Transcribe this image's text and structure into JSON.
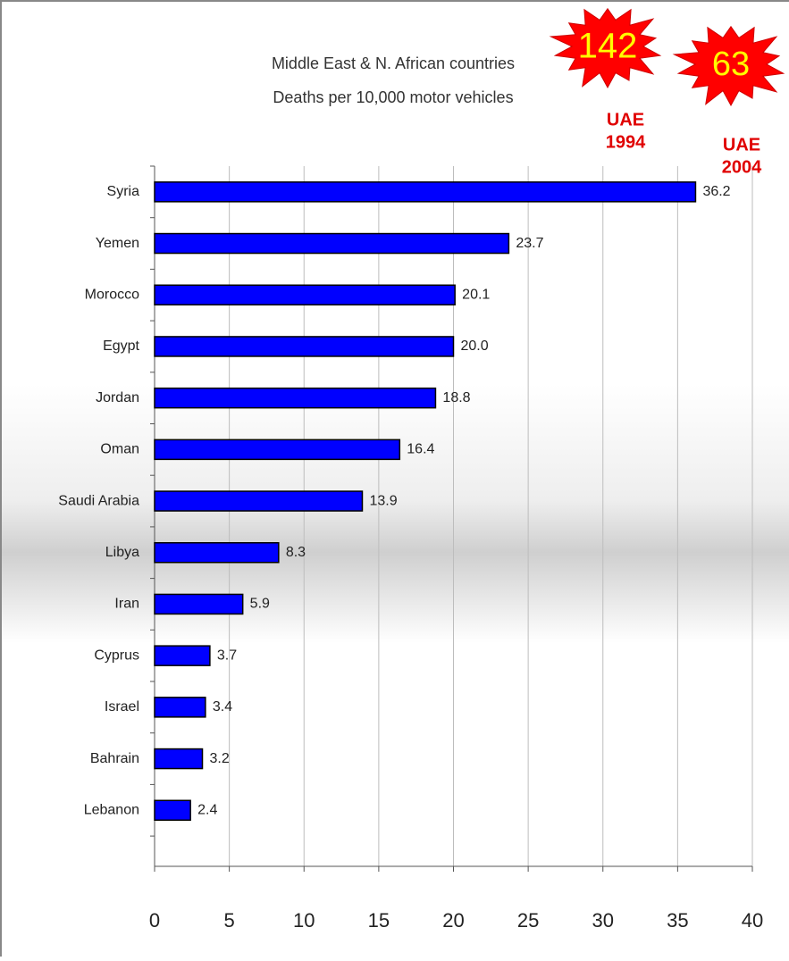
{
  "chart_data": {
    "type": "bar",
    "orientation": "horizontal",
    "title": "Middle East & N. African countries",
    "subtitle": "Deaths per 10,000 motor vehicles",
    "categories": [
      "Syria",
      "Yemen",
      "Morocco",
      "Egypt",
      "Jordan",
      "Oman",
      "Saudi Arabia",
      "Libya",
      "Iran",
      "Cyprus",
      "Israel",
      "Bahrain",
      "Lebanon"
    ],
    "values": [
      36.2,
      23.7,
      20.1,
      20.0,
      18.8,
      16.4,
      13.9,
      8.3,
      5.9,
      3.7,
      3.4,
      3.2,
      2.4
    ],
    "value_labels": [
      "36.2",
      "23.7",
      "20.1",
      "20.0",
      "18.8",
      "16.4",
      "13.9",
      "8.3",
      "5.9",
      "3.7",
      "3.4",
      "3.2",
      "2.4"
    ],
    "color": "#0000ff",
    "xlim": [
      0,
      40
    ],
    "xticks": [
      0,
      5,
      10,
      15,
      20,
      25,
      30,
      35,
      40
    ],
    "grid": true,
    "annotations": [
      {
        "burst": "142",
        "caption": [
          "UAE",
          "1994"
        ]
      },
      {
        "burst": "63",
        "caption": [
          "UAE",
          "2004"
        ]
      }
    ]
  }
}
